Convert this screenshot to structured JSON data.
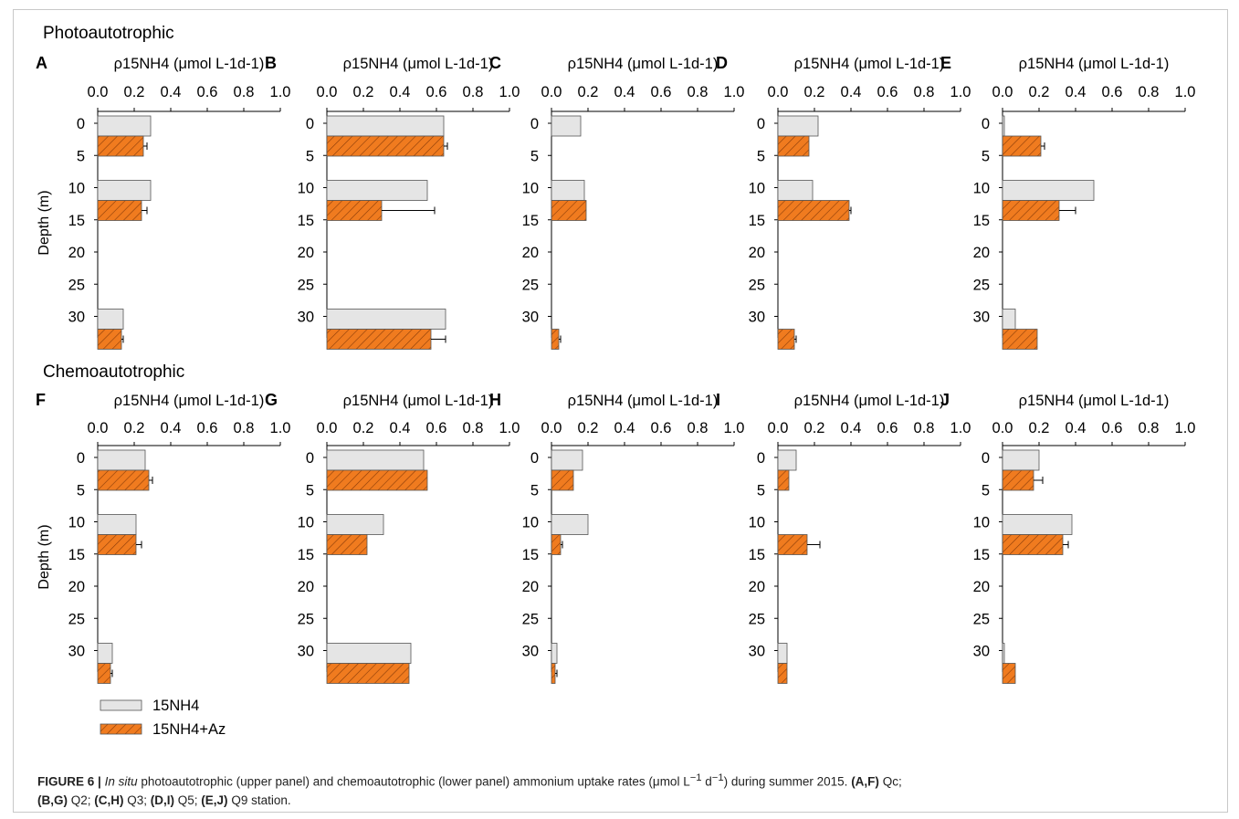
{
  "figure": {
    "section_titles": [
      "Photoautotrophic",
      "Chemoautotrophic"
    ],
    "axis_title": "ρ15NH4 (μmol L-1d-1)",
    "x_ticks": [
      "0.0",
      "0.2",
      "0.4",
      "0.6",
      "0.8",
      "1.0"
    ],
    "y_label": "Depth (m)",
    "y_ticks": [
      "0",
      "5",
      "10",
      "15",
      "20",
      "25",
      "30"
    ],
    "legend": [
      "15NH4",
      "15NH4+Az"
    ],
    "colors": {
      "15NH4": "#e5e5e5",
      "15NH4+Az": "#f07b1f",
      "hatch": "#8a3c08",
      "axis": "#000000"
    }
  },
  "caption": {
    "figure_label": "FIGURE 6 |",
    "in_situ": "In situ",
    "text1": " photoautotrophic (upper panel) and chemoautotrophic (lower panel) ammonium uptake rates (μmol L",
    "sup1": "−1",
    "text2": " d",
    "sup2": "−1",
    "text3": ") during summer 2015. ",
    "af": "(A,F)",
    "qc": " Qc;",
    "bg": "(B,G)",
    "q2": " Q2; ",
    "ch": "(C,H)",
    "q3": " Q3; ",
    "di": "(D,I)",
    "q5": " Q5; ",
    "ej": "(E,J)",
    "q9": " Q9 station."
  },
  "chart_data": [
    {
      "type": "bar",
      "panel": "A",
      "group": "Photoautotrophic",
      "depths": [
        0,
        10,
        30
      ],
      "series": [
        {
          "name": "15NH4",
          "values": [
            0.29,
            0.29,
            0.14
          ]
        },
        {
          "name": "15NH4+Az",
          "values": [
            0.25,
            0.24,
            0.13
          ],
          "errors": [
            0.02,
            0.03,
            0.01
          ]
        }
      ],
      "xlim": [
        0,
        1.0
      ],
      "ylim": [
        0,
        30
      ]
    },
    {
      "type": "bar",
      "panel": "B",
      "group": "Photoautotrophic",
      "depths": [
        0,
        10,
        30
      ],
      "series": [
        {
          "name": "15NH4",
          "values": [
            0.64,
            0.55,
            0.65
          ]
        },
        {
          "name": "15NH4+Az",
          "values": [
            0.64,
            0.3,
            0.57
          ],
          "errors": [
            0.02,
            0.29,
            0.08
          ]
        }
      ],
      "xlim": [
        0,
        1.0
      ],
      "ylim": [
        0,
        30
      ]
    },
    {
      "type": "bar",
      "panel": "C",
      "group": "Photoautotrophic",
      "depths": [
        0,
        10,
        30
      ],
      "series": [
        {
          "name": "15NH4",
          "values": [
            0.16,
            0.18,
            0.0
          ]
        },
        {
          "name": "15NH4+Az",
          "values": [
            0.0,
            0.19,
            0.04
          ],
          "errors": [
            0.0,
            0.0,
            0.01
          ]
        }
      ],
      "xlim": [
        0,
        1.0
      ],
      "ylim": [
        0,
        30
      ]
    },
    {
      "type": "bar",
      "panel": "D",
      "group": "Photoautotrophic",
      "depths": [
        0,
        10,
        30
      ],
      "series": [
        {
          "name": "15NH4",
          "values": [
            0.22,
            0.19,
            0.0
          ]
        },
        {
          "name": "15NH4+Az",
          "values": [
            0.17,
            0.39,
            0.09
          ],
          "errors": [
            0.0,
            0.01,
            0.01
          ]
        }
      ],
      "xlim": [
        0,
        1.0
      ],
      "ylim": [
        0,
        30
      ]
    },
    {
      "type": "bar",
      "panel": "E",
      "group": "Photoautotrophic",
      "depths": [
        0,
        10,
        30
      ],
      "series": [
        {
          "name": "15NH4",
          "values": [
            0.01,
            0.5,
            0.07
          ]
        },
        {
          "name": "15NH4+Az",
          "values": [
            0.21,
            0.31,
            0.19
          ],
          "errors": [
            0.02,
            0.09,
            0.0
          ]
        }
      ],
      "xlim": [
        0,
        1.0
      ],
      "ylim": [
        0,
        30
      ]
    },
    {
      "type": "bar",
      "panel": "F",
      "group": "Chemoautotrophic",
      "depths": [
        0,
        10,
        30
      ],
      "series": [
        {
          "name": "15NH4",
          "values": [
            0.26,
            0.21,
            0.08
          ]
        },
        {
          "name": "15NH4+Az",
          "values": [
            0.28,
            0.21,
            0.07
          ],
          "errors": [
            0.02,
            0.03,
            0.01
          ]
        }
      ],
      "xlim": [
        0,
        1.0
      ],
      "ylim": [
        0,
        30
      ]
    },
    {
      "type": "bar",
      "panel": "G",
      "group": "Chemoautotrophic",
      "depths": [
        0,
        10,
        30
      ],
      "series": [
        {
          "name": "15NH4",
          "values": [
            0.53,
            0.31,
            0.46
          ]
        },
        {
          "name": "15NH4+Az",
          "values": [
            0.55,
            0.22,
            0.45
          ],
          "errors": [
            0.0,
            0.0,
            0.0
          ]
        }
      ],
      "xlim": [
        0,
        1.0
      ],
      "ylim": [
        0,
        30
      ]
    },
    {
      "type": "bar",
      "panel": "H",
      "group": "Chemoautotrophic",
      "depths": [
        0,
        10,
        30
      ],
      "series": [
        {
          "name": "15NH4",
          "values": [
            0.17,
            0.2,
            0.03
          ]
        },
        {
          "name": "15NH4+Az",
          "values": [
            0.12,
            0.05,
            0.02
          ],
          "errors": [
            0.0,
            0.01,
            0.01
          ]
        }
      ],
      "xlim": [
        0,
        1.0
      ],
      "ylim": [
        0,
        30
      ]
    },
    {
      "type": "bar",
      "panel": "I",
      "group": "Chemoautotrophic",
      "depths": [
        0,
        10,
        30
      ],
      "series": [
        {
          "name": "15NH4",
          "values": [
            0.1,
            0.0,
            0.05
          ]
        },
        {
          "name": "15NH4+Az",
          "values": [
            0.06,
            0.16,
            0.05
          ],
          "errors": [
            0.0,
            0.07,
            0.0
          ]
        }
      ],
      "xlim": [
        0,
        1.0
      ],
      "ylim": [
        0,
        30
      ]
    },
    {
      "type": "bar",
      "panel": "J",
      "group": "Chemoautotrophic",
      "depths": [
        0,
        10,
        30
      ],
      "series": [
        {
          "name": "15NH4",
          "values": [
            0.2,
            0.38,
            0.01
          ]
        },
        {
          "name": "15NH4+Az",
          "values": [
            0.17,
            0.33,
            0.07
          ],
          "errors": [
            0.05,
            0.03,
            0.0
          ]
        }
      ],
      "xlim": [
        0,
        1.0
      ],
      "ylim": [
        0,
        30
      ]
    }
  ]
}
